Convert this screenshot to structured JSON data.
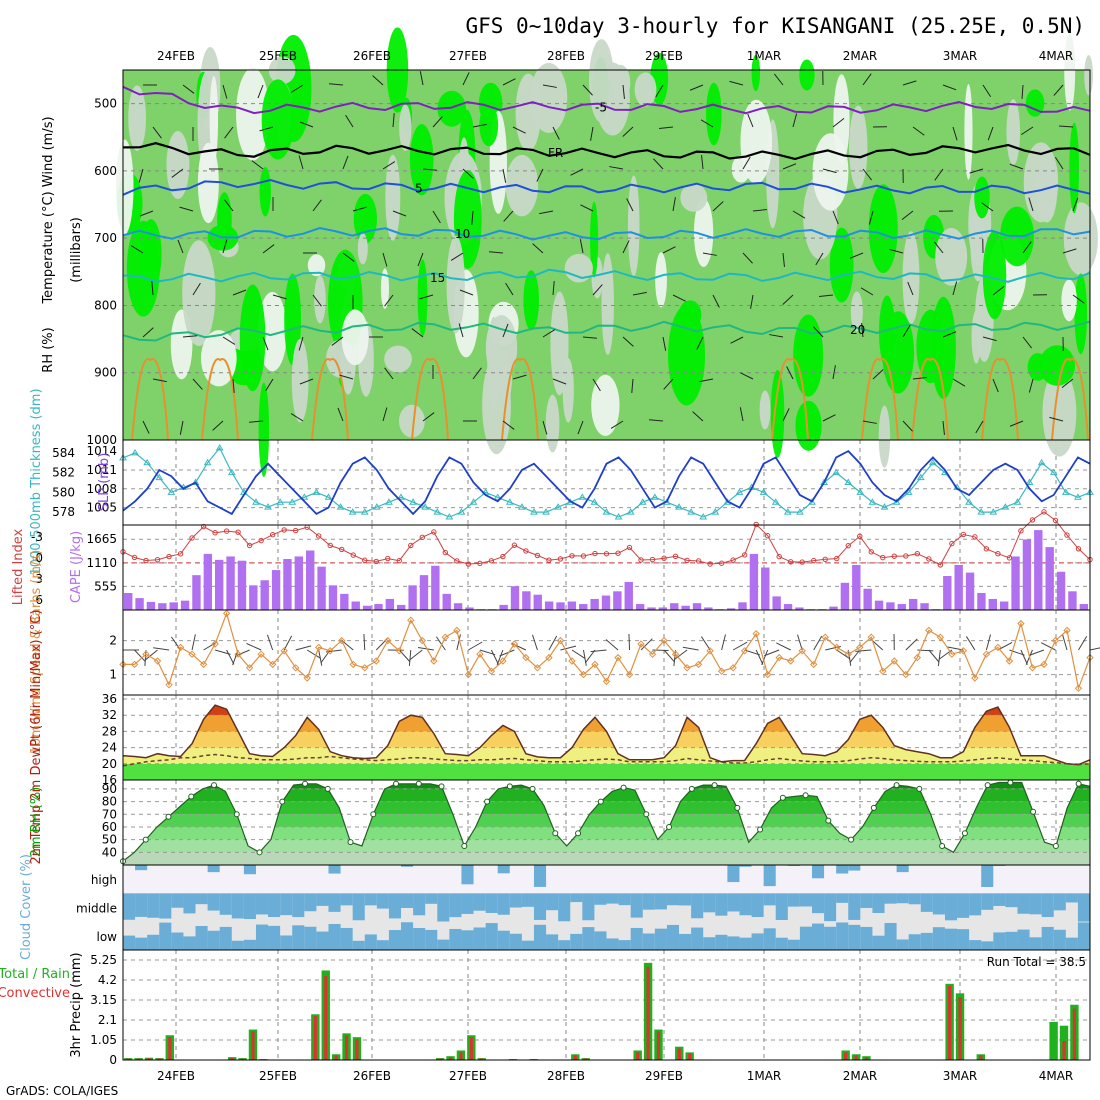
{
  "title": "GFS 0~10day 3-hourly for KISANGANI (25.25E, 0.5N)",
  "footer": "GrADS: COLA/IGES",
  "colors": {
    "rh_dark": "#00ee00",
    "rh_mid": "#7fd26a",
    "rh_light": "#c8d8c8",
    "rh_pale": "#eef4ee",
    "slp": "#1f3fc8",
    "thick": "#3ab8c0",
    "li": "#d04040",
    "cape": "#b070f0",
    "wind": "#e09040",
    "temp": "#b02010",
    "rh2m": "#00a000",
    "cloud": "#6aaed8",
    "rain": "#20b020",
    "conv": "#e03030"
  },
  "chart_data": [
    {
      "id": "upper_air",
      "type": "heatmap",
      "xlabel": "",
      "ylabel_parts": [
        "RH (%)",
        "Temperature",
        "(°C)",
        "Wind",
        "(m/s)",
        "(millibars)"
      ],
      "x_dates": [
        "24FEB",
        "25FEB",
        "26FEB",
        "27FEB",
        "28FEB",
        "29FEB",
        "1MAR",
        "2MAR",
        "3MAR",
        "4MAR"
      ],
      "y_ticks": [
        500,
        600,
        700,
        800,
        900,
        1000
      ],
      "ylim": [
        1000,
        450
      ],
      "isotherms": [
        {
          "label": "-5",
          "level_mb": [
            475,
            510,
            505,
            503,
            504,
            506,
            509,
            508,
            502,
            512
          ]
        },
        {
          "label": "FR",
          "level_mb": [
            560,
            575,
            568,
            570,
            572,
            575,
            577,
            574,
            566,
            572
          ]
        },
        {
          "label": "5",
          "level_mb": [
            630,
            618,
            622,
            625,
            627,
            626,
            622,
            628,
            627,
            628
          ]
        },
        {
          "label": "10",
          "level_mb": [
            695,
            695,
            690,
            692,
            697,
            695,
            692,
            694,
            695,
            688
          ]
        },
        {
          "label": "15",
          "level_mb": [
            760,
            758,
            755,
            758,
            752,
            757,
            758,
            755,
            760,
            755
          ]
        },
        {
          "label": "20",
          "level_mb": [
            850,
            840,
            835,
            830,
            838,
            830,
            838,
            835,
            832,
            830
          ]
        }
      ]
    },
    {
      "id": "slp_thickness",
      "type": "line",
      "ylabel_left": "1000-500mb Thickness (dm)",
      "ylabel_right": "SLP (mb)",
      "slp_ticks": [
        1005,
        1008,
        1011,
        1014
      ],
      "thick_ticks": [
        578,
        580,
        582,
        584
      ],
      "series": [
        {
          "name": "SLP (mb)",
          "values": [
            1004.5,
            1006,
            1008,
            1011,
            1010,
            1008,
            1009,
            1006,
            1005,
            1004,
            1007,
            1010,
            1012,
            1010,
            1008,
            1006,
            1004,
            1005,
            1009,
            1012,
            1013,
            1011,
            1008,
            1006,
            1004,
            1006,
            1010,
            1013,
            1012,
            1009,
            1007,
            1006,
            1008,
            1011,
            1012,
            1010,
            1008,
            1006,
            1005,
            1008,
            1012,
            1013,
            1011,
            1008,
            1005,
            1006,
            1010,
            1013,
            1012,
            1009,
            1006,
            1005,
            1008,
            1012,
            1013,
            1010,
            1007,
            1006,
            1009,
            1013,
            1014,
            1012,
            1009,
            1007,
            1006,
            1008,
            1011,
            1013,
            1011,
            1008,
            1007,
            1009,
            1011,
            1012,
            1011,
            1008,
            1006,
            1007,
            1010,
            1013,
            1012
          ]
        },
        {
          "name": "Thickness (dm)",
          "values": [
            583.5,
            584,
            583,
            581.5,
            580,
            580.5,
            581,
            583,
            584.5,
            582,
            580,
            579,
            578.5,
            579,
            579,
            579.5,
            580,
            579.5,
            578.5,
            578,
            578,
            578.5,
            579,
            579.5,
            579,
            578.5,
            578,
            577.5,
            578,
            579,
            580,
            579.5,
            579,
            578.5,
            578,
            578,
            578.5,
            579,
            579.5,
            579,
            578,
            577.5,
            578,
            579,
            579.5,
            579,
            578.5,
            578,
            577.5,
            578,
            579,
            580,
            580.5,
            580,
            579,
            578,
            578,
            579,
            581,
            582,
            581,
            580,
            579,
            578.5,
            579,
            580,
            581.5,
            583,
            582,
            580.5,
            579,
            578,
            578,
            578.5,
            579,
            581,
            583,
            582,
            580,
            579.5,
            580
          ]
        }
      ]
    },
    {
      "id": "cape_li",
      "type": "bar",
      "ylabel_left": "Lifted Index",
      "ylabel_right": "CAPE (J/kg)",
      "li_ticks": [
        -3,
        0,
        3,
        6
      ],
      "cape_ticks": [
        555,
        1110,
        1665
      ],
      "cape_values": [
        400,
        280,
        190,
        160,
        180,
        220,
        820,
        1320,
        1180,
        1260,
        1160,
        580,
        700,
        940,
        1200,
        1260,
        1400,
        1020,
        580,
        380,
        200,
        100,
        140,
        260,
        120,
        580,
        820,
        1040,
        380,
        160,
        60,
        20,
        20,
        120,
        560,
        440,
        360,
        200,
        180,
        200,
        140,
        260,
        340,
        440,
        660,
        140,
        60,
        60,
        160,
        100,
        160,
        60,
        20,
        40,
        180,
        1320,
        1000,
        320,
        140,
        60,
        20,
        20,
        80,
        640,
        1060,
        500,
        220,
        180,
        140,
        260,
        160,
        20,
        800,
        1060,
        880,
        400,
        260,
        200,
        1260,
        1660,
        1880,
        1480,
        900,
        440,
        140
      ]
    },
    {
      "id": "wind10m",
      "type": "line",
      "ylabel": "10m Wind Speed & Barbs (m/s)",
      "ylim": [
        0.4,
        2.9
      ],
      "y_ticks": [
        1,
        2
      ],
      "series": [
        {
          "name": "10m Wind Speed",
          "values": [
            1.3,
            1.3,
            1.6,
            1.4,
            0.7,
            1.8,
            1.6,
            1.3,
            1.9,
            2.8,
            1.6,
            1.2,
            1.6,
            1.3,
            1.7,
            1.2,
            0.9,
            1.8,
            1.7,
            2.0,
            1.3,
            1.2,
            1.4,
            2.0,
            1.7,
            2.6,
            2.0,
            1.4,
            2.1,
            2.3,
            1.0,
            1.6,
            1.1,
            1.4,
            1.9,
            1.5,
            1.2,
            1.5,
            2.0,
            1.4,
            1.0,
            1.3,
            0.8,
            1.5,
            1.0,
            1.9,
            1.6,
            2.0,
            1.6,
            1.2,
            1.3,
            1.7,
            1.1,
            1.2,
            1.7,
            2.2,
            1.0,
            1.5,
            1.4,
            1.7,
            1.3,
            2.1,
            1.8,
            1.6,
            1.8,
            2.1,
            1.1,
            1.4,
            1.0,
            1.5,
            2.3,
            2.1,
            1.6,
            1.7,
            0.9,
            1.6,
            1.8,
            1.4,
            2.5,
            1.2,
            1.3,
            2.0,
            2.3,
            0.6,
            1.5
          ]
        }
      ]
    },
    {
      "id": "temp2m",
      "type": "area",
      "ylabel": "2m Temp 2m DewPt (6hr Min/Max) (°C)",
      "ylim": [
        16,
        37
      ],
      "y_ticks": [
        16,
        20,
        24,
        28,
        32,
        36
      ],
      "series": [
        {
          "name": "2m Temp",
          "values": [
            22,
            21.8,
            21.5,
            22.5,
            22,
            21.8,
            25,
            31,
            34.5,
            33.5,
            28,
            22.5,
            22,
            21.8,
            24,
            27,
            31.5,
            28.5,
            23,
            22,
            21.5,
            21.3,
            21.5,
            24.5,
            30.5,
            32,
            31.5,
            27.5,
            22.5,
            22.3,
            22,
            24,
            27,
            29.5,
            28,
            22.5,
            21.7,
            21.5,
            21.5,
            24,
            28.5,
            31.5,
            28,
            22.5,
            21,
            21,
            21,
            21.5,
            24.5,
            31.5,
            29,
            21.5,
            20.5,
            20.8,
            20.8,
            25,
            30,
            31.5,
            27,
            22.5,
            22.3,
            22,
            23,
            26,
            31,
            32,
            29,
            24.5,
            23.5,
            23,
            22.5,
            21.5,
            21.5,
            23,
            29,
            33,
            34,
            29,
            22,
            22,
            22,
            21,
            20,
            19.8,
            21
          ]
        },
        {
          "name": "2m DewPt",
          "values": [
            19.5,
            20,
            20.5,
            20.8,
            21,
            21.5,
            21.5,
            22,
            22.3,
            22,
            21.5,
            21.3,
            21,
            21,
            21,
            21.2,
            21.5,
            21.5,
            21.8,
            21.5,
            21.2,
            21,
            20.8,
            21,
            21.2,
            21.5,
            21.5,
            21.2,
            21,
            20.8,
            20.8,
            21,
            21,
            21.2,
            21.3,
            21,
            20.8,
            20.5,
            20.5,
            20.5,
            20.8,
            21,
            21.2,
            21,
            20.5,
            20.5,
            20.5,
            20.5,
            20.8,
            21.3,
            21,
            20.7,
            20.4,
            20.2,
            20.2,
            20.5,
            21,
            21.3,
            21,
            20.7,
            20.5,
            20.5,
            20.5,
            20.8,
            21.2,
            21.5,
            21.3,
            21,
            20.8,
            20.6,
            20.5,
            20.5,
            20.5,
            20.7,
            21,
            21.3,
            21.5,
            21.2,
            21,
            20.8,
            20.5,
            20.3,
            20,
            19.8,
            20
          ]
        }
      ]
    },
    {
      "id": "rh2m",
      "type": "area",
      "ylabel": "2m RH (%)",
      "ylim": [
        30,
        97
      ],
      "y_ticks": [
        40,
        50,
        60,
        70,
        80,
        90
      ],
      "series": [
        {
          "name": "2m RH",
          "values": [
            33,
            40,
            50,
            60,
            68,
            76,
            84,
            90,
            93,
            88,
            70,
            45,
            40,
            50,
            80,
            93,
            94,
            94,
            90,
            75,
            48,
            45,
            70,
            90,
            94,
            94,
            94,
            94,
            92,
            70,
            45,
            60,
            80,
            90,
            92,
            93,
            90,
            77,
            55,
            45,
            55,
            70,
            80,
            88,
            91,
            89,
            70,
            50,
            60,
            80,
            90,
            93,
            93,
            92,
            75,
            48,
            58,
            75,
            83,
            84,
            85,
            84,
            65,
            55,
            50,
            60,
            75,
            88,
            93,
            92,
            90,
            70,
            45,
            40,
            55,
            75,
            93,
            95,
            95,
            95,
            72,
            48,
            45,
            75,
            94,
            92
          ]
        }
      ]
    },
    {
      "id": "cloud",
      "type": "heatmap",
      "ylabel": "Cloud Cover (%)",
      "rows": [
        "high",
        "middle",
        "low"
      ]
    },
    {
      "id": "precip",
      "type": "bar",
      "ylabel": "3hr Precip (mm)",
      "legend": [
        "Total / Rain",
        "Convective"
      ],
      "annotation": "Run Total = 38.5",
      "y_ticks": [
        0,
        1.05,
        2.1,
        3.15,
        4.2,
        5.25
      ],
      "ylim": [
        0,
        5.25
      ],
      "total": [
        0.1,
        0.1,
        0.12,
        0.1,
        1.3,
        0,
        0,
        0,
        0,
        0,
        0.15,
        0.1,
        1.6,
        0.05,
        0,
        0,
        0,
        0,
        2.4,
        4.7,
        0.3,
        1.4,
        1.2,
        0,
        0,
        0,
        0,
        0,
        0,
        0,
        0.1,
        0.2,
        0.5,
        1.3,
        0.1,
        0,
        0,
        0.05,
        0,
        0.05,
        0,
        0,
        0,
        0.3,
        0.1,
        0,
        0,
        0,
        0,
        0.5,
        5.1,
        1.6,
        0,
        0.7,
        0.4,
        0,
        0,
        0,
        0,
        0,
        0,
        0,
        0,
        0,
        0,
        0,
        0,
        0,
        0,
        0.5,
        0.3,
        0.2,
        0,
        0,
        0,
        0,
        0,
        0,
        0,
        4.0,
        3.5,
        0,
        0.3,
        0,
        0,
        0,
        0,
        0,
        0,
        2.0,
        1.8,
        2.9,
        0
      ],
      "convective": [
        0.08,
        0.08,
        0.1,
        0.08,
        1.2,
        0,
        0,
        0,
        0,
        0,
        0.12,
        0.08,
        1.5,
        0.04,
        0,
        0,
        0,
        0,
        2.3,
        4.4,
        0.25,
        1.3,
        1.1,
        0,
        0,
        0,
        0,
        0,
        0,
        0,
        0.08,
        0.15,
        0.4,
        1.2,
        0.08,
        0,
        0,
        0.04,
        0,
        0.04,
        0,
        0,
        0,
        0.25,
        0.08,
        0,
        0,
        0,
        0,
        0.4,
        4.9,
        1.5,
        0,
        0.6,
        0.35,
        0,
        0,
        0,
        0,
        0,
        0,
        0,
        0,
        0,
        0,
        0,
        0,
        0,
        0,
        0.4,
        0.25,
        0.15,
        0,
        0,
        0,
        0,
        0,
        0,
        0,
        3.9,
        3.3,
        0,
        0.25,
        0,
        0,
        0,
        0,
        0,
        0,
        0,
        1.0,
        2.7,
        0
      ]
    }
  ]
}
